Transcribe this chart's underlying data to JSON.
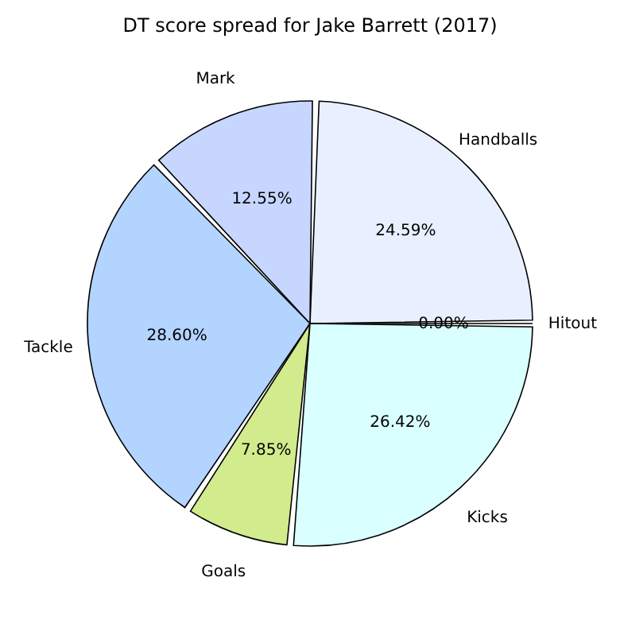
{
  "chart_data": {
    "type": "pie",
    "title": "DT score spread for Jake Barrett (2017)",
    "categories": [
      "Handballs",
      "Mark",
      "Tackle",
      "Goals",
      "Kicks",
      "Hitout"
    ],
    "values": [
      24.59,
      12.55,
      28.6,
      7.85,
      26.42,
      0.0
    ],
    "value_labels": [
      "24.59%",
      "12.55%",
      "28.60%",
      "7.85%",
      "26.42%",
      "0.00%"
    ],
    "colors": [
      "#e8f0ff",
      "#c6d6ff",
      "#b3d4ff",
      "#d2eb8c",
      "#d9ffff",
      "#ffffff"
    ],
    "legend": false
  }
}
